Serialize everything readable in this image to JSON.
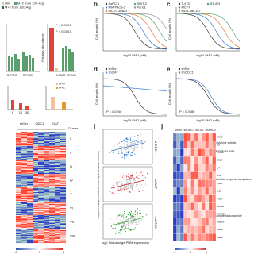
{
  "panel_a": {
    "legend": [
      "Gln",
      "M+2 from 13C-Arg",
      "M+2 from 13C-Arg"
    ],
    "pvalues": [
      "P < 0.0001",
      "P < 0.0001"
    ],
    "x_labels": [
      "S-FMO",
      "DFMO",
      "S-FMO",
      "DFMO"
    ],
    "y_label": "Relative abundance",
    "lower_legend": [
      "M+0",
      "M+2"
    ],
    "lower_x": [
      "0",
      "10",
      "30"
    ]
  },
  "panel_b": {
    "label": "b",
    "legend": [
      "AsPC-1",
      "MIA PaCa-2",
      "PA-TU-8988T",
      "SUIT-2",
      "Panc1"
    ],
    "x_label": "log10 FMO (nM)",
    "y_label": "Cell growth (%)"
  },
  "panel_c": {
    "label": "c",
    "legend": [
      "T-47D",
      "MCF7",
      "MDA-MB-157",
      "BT-474"
    ],
    "x_label": "log10 FMO (nM)",
    "y_label": "Cell growth (%)"
  },
  "panel_d": {
    "label": "d",
    "legend": [
      "shScr",
      "shOAT"
    ],
    "pvalue": "P = 0.0240",
    "x_label": "log10 FMO (nM)",
    "y_label": "Cell growth (%)"
  },
  "panel_e": {
    "label": "e",
    "legend": [
      "shScr",
      "shODC1"
    ],
    "pvalue": "P = 0.3080",
    "x_label": "log10 FMO (nM)",
    "y_label": "Cell growth (%)"
  },
  "panel_heatmap": {
    "columns": [
      "shScr",
      "ODC1",
      "OAT"
    ],
    "cluster_title": "Cluster",
    "clusters": [
      "I",
      "II",
      "III",
      "IV",
      "V",
      "VI",
      "VII",
      "VIII"
    ],
    "scale": [
      "-3",
      "0",
      "3"
    ]
  },
  "panel_i": {
    "label": "i",
    "y_label": "log2(fold change) normalized ATAC signal (enhancer ±0.25 kb)",
    "x_label": "log2 fold change PRM expression",
    "rows": [
      "shODC1",
      "shOAT",
      "shARG2"
    ]
  },
  "panel_j": {
    "label": "j",
    "columns": [
      "shScr",
      "shODC1",
      "shOAT",
      "shARG2"
    ],
    "genes": [
      "ARG2",
      "IL6",
      "CXCL8",
      "CCL2",
      "LIF",
      "IL1B",
      "CSF2",
      "IL11",
      "FGF2",
      "VEGFA",
      "PDGFB",
      "HBEGF",
      "AREG",
      "EREG"
    ],
    "terms": [
      "Cytokine activity",
      "Cellular response to cytokine",
      "Growth factor activity"
    ],
    "score_label": "Enrichment score",
    "scale": [
      "-1",
      "0",
      "1"
    ]
  }
}
